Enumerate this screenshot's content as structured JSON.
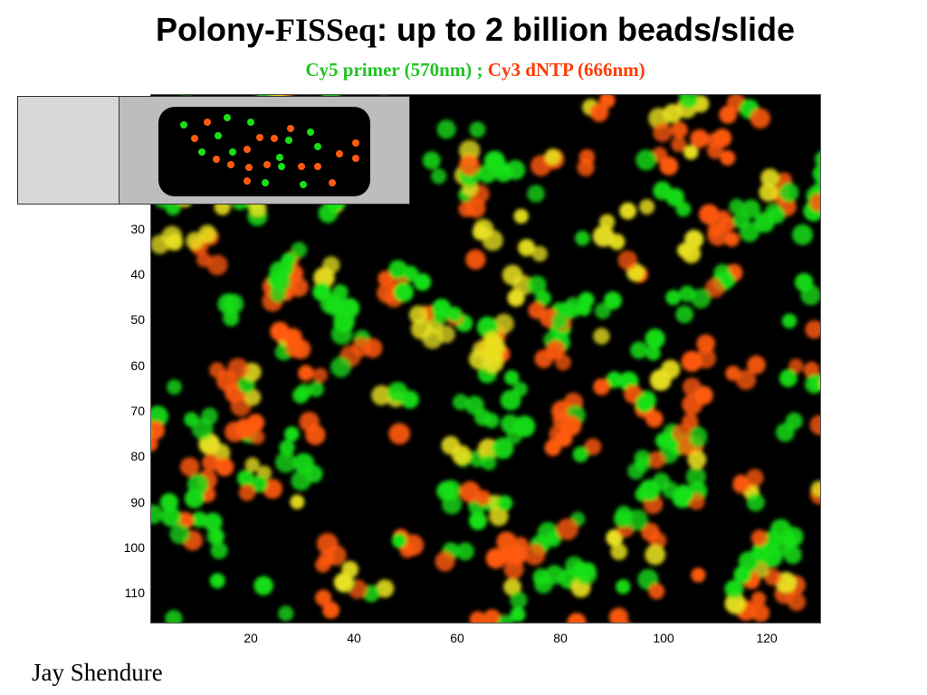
{
  "title": {
    "part1": "Polony-",
    "part2": "FISSeq",
    "part3": ":  up to 2 billion beads/slide"
  },
  "subtitle": {
    "green_text": "Cy5 primer (570nm) ;",
    "red_text": " Cy3 dNTP (666nm)",
    "green_color": "#22c322",
    "red_color": "#ff3b00"
  },
  "axes": {
    "y_ticks": [
      "30",
      "40",
      "50",
      "60",
      "70",
      "80",
      "90",
      "100",
      "110"
    ],
    "x_ticks": [
      "20",
      "40",
      "60",
      "80",
      "100",
      "120"
    ]
  },
  "colors": {
    "green_bead": "#18e018",
    "red_bead": "#ff5a10",
    "yellow_bead": "#e8e020",
    "background": "#000000"
  },
  "credit": "Jay Shendure"
}
